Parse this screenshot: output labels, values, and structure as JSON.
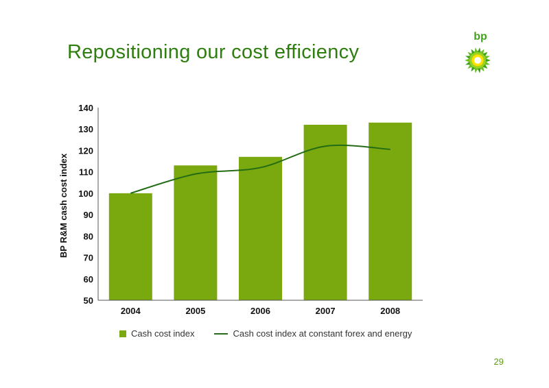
{
  "slide": {
    "title": "Repositioning our cost efficiency",
    "page_number": "29",
    "logo_text": "bp"
  },
  "colors": {
    "title": "#2e7d0f",
    "bar": "#7aa80f",
    "line": "#246b15",
    "logo_green": "#3fa21a",
    "logo_yellow": "#ffe100"
  },
  "chart_data": {
    "type": "bar",
    "categories": [
      "2004",
      "2005",
      "2006",
      "2007",
      "2008"
    ],
    "series": [
      {
        "name": "Cash cost index",
        "type": "bar",
        "values": [
          100,
          113,
          117,
          132,
          133
        ]
      },
      {
        "name": "Cash cost index at constant forex and energy",
        "type": "line",
        "values": [
          100,
          109,
          112,
          122,
          120.5
        ]
      }
    ],
    "ylabel": "BP R&M cash cost index",
    "xlabel": "",
    "ylim": [
      50,
      140
    ],
    "yticks": [
      50,
      60,
      70,
      80,
      90,
      100,
      110,
      120,
      130,
      140
    ],
    "grid": false,
    "legend_position": "bottom"
  }
}
